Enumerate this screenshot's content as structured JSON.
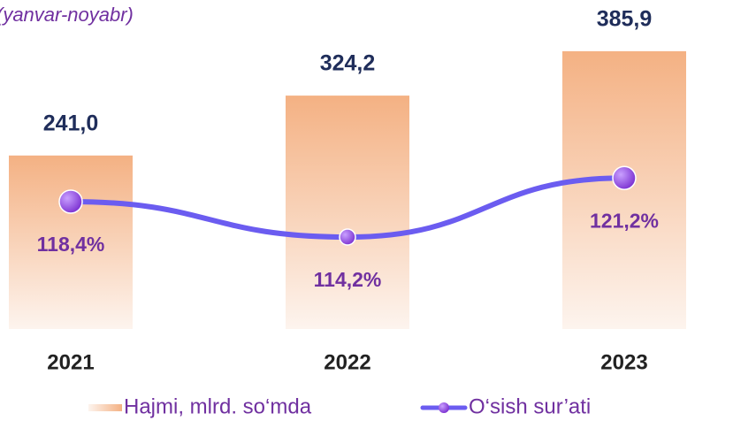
{
  "chart_data": {
    "type": "bar+line",
    "subtitle": "(yanvar-noyabr)",
    "categories": [
      "2021",
      "2022",
      "2023"
    ],
    "series": [
      {
        "name": "Hajmi, mlrd. so‘mda",
        "type": "bar",
        "color": "#f4b183",
        "values": [
          241.0,
          324.2,
          385.9
        ],
        "value_labels": [
          "241,0",
          "324,2",
          "385,9"
        ]
      },
      {
        "name": "O‘sish sur’ati",
        "type": "line",
        "axis": "y2",
        "color": "#6b5cf0",
        "marker_color": "#8a3fd8",
        "values": [
          118.4,
          114.2,
          121.2
        ],
        "value_labels": [
          "118,4%",
          "114,2%",
          "121,2%"
        ]
      }
    ],
    "ylim": [
      0,
      457
    ],
    "y2lim": [
      103.3,
      142.3
    ],
    "legend": "bottom"
  }
}
